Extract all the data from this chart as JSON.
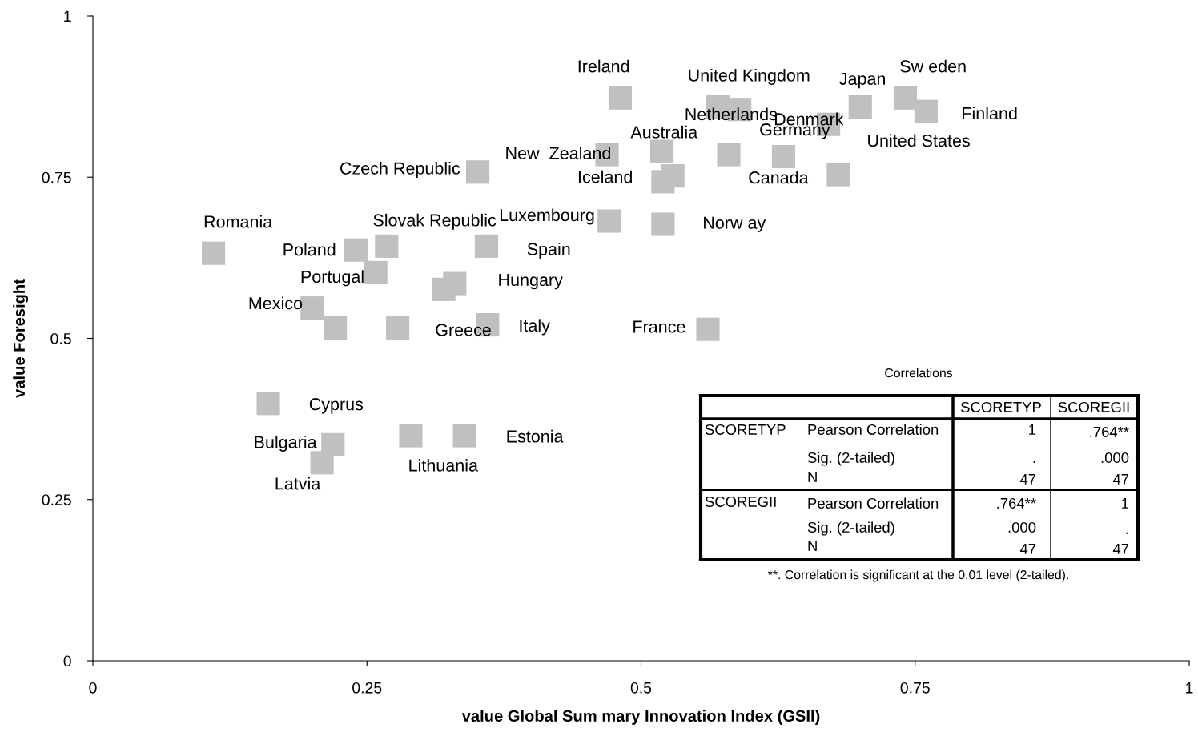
{
  "chart_data": {
    "type": "scatter",
    "xlabel": "value Global Sum mary Innovation Index (GSII)",
    "ylabel": "value Foresight",
    "xlim": [
      0,
      1
    ],
    "ylim": [
      0,
      1
    ],
    "xticks": [
      0,
      0.25,
      0.5,
      0.75,
      1
    ],
    "yticks": [
      0,
      0.25,
      0.5,
      0.75,
      1
    ],
    "grid": false,
    "legend": false,
    "marker": "square",
    "series": [
      {
        "color": "#c0c0c0",
        "x": [
          0.11,
          0.24,
          0.268,
          0.258,
          0.359,
          0.33,
          0.32,
          0.2,
          0.221,
          0.278,
          0.36,
          0.351,
          0.469,
          0.52,
          0.529,
          0.471,
          0.519,
          0.52,
          0.481,
          0.57,
          0.59,
          0.58,
          0.63,
          0.7,
          0.741,
          0.76,
          0.671,
          0.68,
          0.561,
          0.16,
          0.219,
          0.209,
          0.29,
          0.339
        ],
        "values": [
          0.632,
          0.637,
          0.643,
          0.602,
          0.643,
          0.585,
          0.576,
          0.547,
          0.516,
          0.516,
          0.521,
          0.758,
          0.785,
          0.743,
          0.752,
          0.682,
          0.79,
          0.677,
          0.873,
          0.859,
          0.855,
          0.785,
          0.782,
          0.859,
          0.873,
          0.852,
          0.832,
          0.754,
          0.514,
          0.399,
          0.335,
          0.307,
          0.349,
          0.349
        ]
      }
    ],
    "annotations": [
      {
        "text": "Romania",
        "x": 0.11,
        "y": 0.632
      },
      {
        "text": "Poland",
        "x": 0.24,
        "y": 0.637
      },
      {
        "text": "Slovak Republic",
        "x": 0.268,
        "y": 0.643
      },
      {
        "text": "Portugal",
        "x": 0.258,
        "y": 0.602
      },
      {
        "text": "Spain",
        "x": 0.359,
        "y": 0.643
      },
      {
        "text": "Hungary",
        "x": 0.33,
        "y": 0.585
      },
      {
        "text": "Mexico",
        "x": 0.2,
        "y": 0.547
      },
      {
        "text": "Greece",
        "x": 0.278,
        "y": 0.516
      },
      {
        "text": "Italy",
        "x": 0.36,
        "y": 0.521
      },
      {
        "text": "Czech Republic",
        "x": 0.351,
        "y": 0.758
      },
      {
        "text": "New  Zealand",
        "x": 0.469,
        "y": 0.785
      },
      {
        "text": "Iceland",
        "x": 0.52,
        "y": 0.743
      },
      {
        "text": "Luxembourg",
        "x": 0.471,
        "y": 0.682
      },
      {
        "text": "Australia",
        "x": 0.519,
        "y": 0.79
      },
      {
        "text": "Norw ay",
        "x": 0.52,
        "y": 0.677
      },
      {
        "text": "Ireland",
        "x": 0.481,
        "y": 0.873
      },
      {
        "text": "United Kingdom",
        "x": 0.57,
        "y": 0.859
      },
      {
        "text": "Netherlands",
        "x": 0.58,
        "y": 0.785
      },
      {
        "text": "Denmark",
        "x": 0.59,
        "y": 0.855
      },
      {
        "text": "Germany",
        "x": 0.63,
        "y": 0.782
      },
      {
        "text": "Japan",
        "x": 0.7,
        "y": 0.859
      },
      {
        "text": "Sw eden",
        "x": 0.741,
        "y": 0.873
      },
      {
        "text": "Finland",
        "x": 0.76,
        "y": 0.852
      },
      {
        "text": "United States",
        "x": 0.671,
        "y": 0.832
      },
      {
        "text": "Canada",
        "x": 0.68,
        "y": 0.754
      },
      {
        "text": "France",
        "x": 0.561,
        "y": 0.514
      },
      {
        "text": "Cyprus",
        "x": 0.16,
        "y": 0.399
      },
      {
        "text": "Bulgaria",
        "x": 0.219,
        "y": 0.335
      },
      {
        "text": "Latvia",
        "x": 0.209,
        "y": 0.307
      },
      {
        "text": "Lithuania",
        "x": 0.29,
        "y": 0.349
      },
      {
        "text": "Estonia",
        "x": 0.339,
        "y": 0.349
      },
      "Correlations",
      "SCORETYP",
      "SCOREGII",
      "SCORETYP",
      "Pearson Correlation",
      "Sig. (2-tailed)",
      "N",
      "1",
      ".",
      "47",
      ".764**",
      ".000",
      "47",
      "SCOREGII",
      "Pearson Correlation",
      "Sig. (2-tailed)",
      "N",
      ".764**",
      ".000",
      "47",
      "1",
      ".",
      "47",
      "**. Correlation is significant at the 0.01 level (2-tailed)."
    ]
  }
}
